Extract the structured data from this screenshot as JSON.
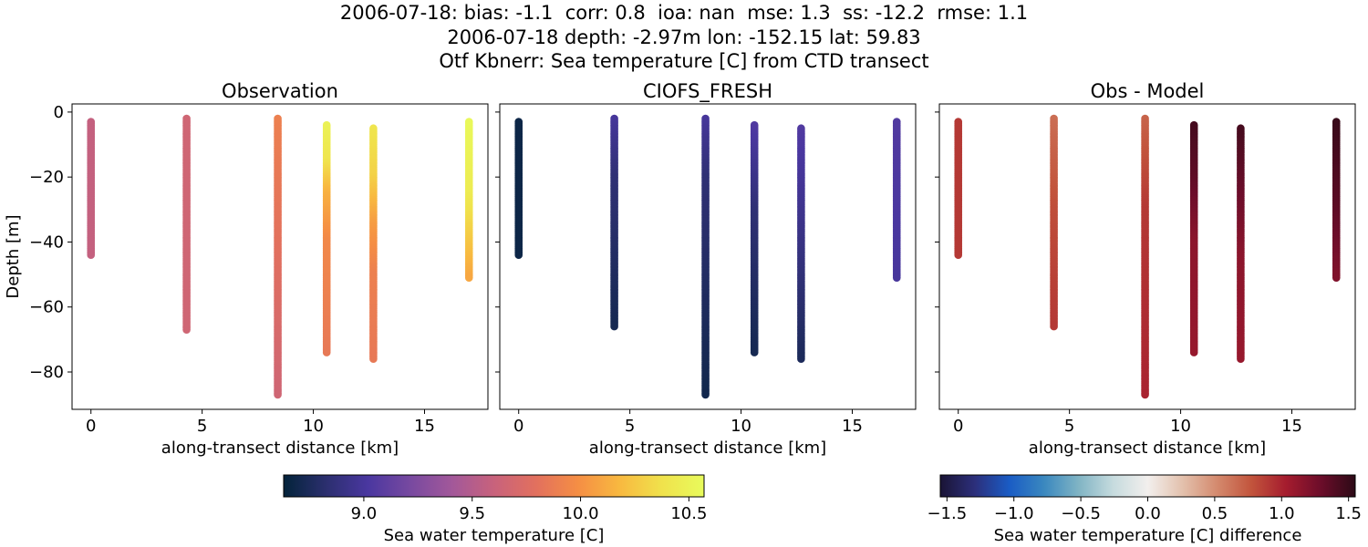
{
  "suptitle": {
    "line1": "2006-07-18: bias: -1.1  corr: 0.8  ioa: nan  mse: 1.3  ss: -12.2  rmse: 1.1",
    "line2": "2006-07-18 depth: -2.97m lon: -152.15 lat: 59.83",
    "line3": "Otf Kbnerr: Sea temperature [C] from CTD transect"
  },
  "chart_data": [
    {
      "type": "scatter",
      "title": "Observation",
      "xlabel": "along-transect distance [km]",
      "ylabel": "Depth [m]",
      "xlim": [
        -0.85,
        17.85
      ],
      "ylim": [
        -91.5,
        2.5
      ],
      "xticks": [
        "0",
        "5",
        "10",
        "15"
      ],
      "yticks": [
        "0",
        "−20",
        "−40",
        "−60",
        "−80"
      ],
      "colorbar": "temperature",
      "profiles": [
        {
          "x": 0.0,
          "top": -3,
          "bottom": -44,
          "values": [
            {
              "depth": -3,
              "value": 9.58
            },
            {
              "depth": -44,
              "value": 9.58
            }
          ]
        },
        {
          "x": 4.3,
          "top": -2,
          "bottom": -67,
          "values": [
            {
              "depth": -2,
              "value": 9.65
            },
            {
              "depth": -67,
              "value": 9.65
            }
          ]
        },
        {
          "x": 8.4,
          "top": -2,
          "bottom": -87,
          "values": [
            {
              "depth": -2,
              "value": 9.9
            },
            {
              "depth": -40,
              "value": 9.8
            },
            {
              "depth": -87,
              "value": 9.65
            }
          ]
        },
        {
          "x": 10.6,
          "top": -4,
          "bottom": -74,
          "values": [
            {
              "depth": -4,
              "value": 10.5
            },
            {
              "depth": -15,
              "value": 10.4
            },
            {
              "depth": -25,
              "value": 10.15
            },
            {
              "depth": -40,
              "value": 9.95
            },
            {
              "depth": -74,
              "value": 9.85
            }
          ]
        },
        {
          "x": 12.7,
          "top": -5,
          "bottom": -76,
          "values": [
            {
              "depth": -5,
              "value": 10.4
            },
            {
              "depth": -20,
              "value": 10.3
            },
            {
              "depth": -35,
              "value": 10.05
            },
            {
              "depth": -50,
              "value": 9.9
            },
            {
              "depth": -76,
              "value": 9.85
            }
          ]
        },
        {
          "x": 17.0,
          "top": -3,
          "bottom": -51,
          "values": [
            {
              "depth": -3,
              "value": 10.55
            },
            {
              "depth": -25,
              "value": 10.45
            },
            {
              "depth": -40,
              "value": 10.25
            },
            {
              "depth": -51,
              "value": 10.1
            }
          ]
        }
      ]
    },
    {
      "type": "scatter",
      "title": "CIOFS_FRESH",
      "xlabel": "along-transect distance [km]",
      "ylabel": "",
      "xlim": [
        -0.85,
        17.85
      ],
      "ylim": [
        -91.5,
        2.5
      ],
      "xticks": [
        "0",
        "5",
        "10",
        "15"
      ],
      "yticks": [],
      "colorbar": "temperature",
      "profiles": [
        {
          "x": 0.0,
          "top": -3,
          "bottom": -44,
          "values": [
            {
              "depth": -3,
              "value": 8.68
            },
            {
              "depth": -44,
              "value": 8.68
            }
          ]
        },
        {
          "x": 4.3,
          "top": -2,
          "bottom": -66,
          "values": [
            {
              "depth": -2,
              "value": 9.0
            },
            {
              "depth": -20,
              "value": 8.85
            },
            {
              "depth": -66,
              "value": 8.72
            }
          ]
        },
        {
          "x": 8.4,
          "top": -2,
          "bottom": -87,
          "values": [
            {
              "depth": -2,
              "value": 9.0
            },
            {
              "depth": -20,
              "value": 8.85
            },
            {
              "depth": -87,
              "value": 8.7
            }
          ]
        },
        {
          "x": 10.6,
          "top": -4,
          "bottom": -74,
          "values": [
            {
              "depth": -4,
              "value": 9.05
            },
            {
              "depth": -30,
              "value": 8.85
            },
            {
              "depth": -74,
              "value": 8.72
            }
          ]
        },
        {
          "x": 12.7,
          "top": -5,
          "bottom": -76,
          "values": [
            {
              "depth": -5,
              "value": 9.05
            },
            {
              "depth": -30,
              "value": 8.95
            },
            {
              "depth": -76,
              "value": 8.75
            }
          ]
        },
        {
          "x": 17.0,
          "top": -3,
          "bottom": -51,
          "values": [
            {
              "depth": -3,
              "value": 9.05
            },
            {
              "depth": -51,
              "value": 9.0
            }
          ]
        }
      ]
    },
    {
      "type": "scatter",
      "title": "Obs - Model",
      "xlabel": "along-transect distance [km]",
      "ylabel": "",
      "xlim": [
        -0.85,
        17.85
      ],
      "ylim": [
        -91.5,
        2.5
      ],
      "xticks": [
        "0",
        "5",
        "10",
        "15"
      ],
      "yticks": [],
      "colorbar": "difference",
      "profiles": [
        {
          "x": 0.0,
          "top": -3,
          "bottom": -44,
          "values": [
            {
              "depth": -3,
              "value": 0.9
            },
            {
              "depth": -44,
              "value": 0.9
            }
          ]
        },
        {
          "x": 4.3,
          "top": -2,
          "bottom": -66,
          "values": [
            {
              "depth": -2,
              "value": 0.65
            },
            {
              "depth": -30,
              "value": 0.8
            },
            {
              "depth": -66,
              "value": 0.9
            }
          ]
        },
        {
          "x": 8.4,
          "top": -2,
          "bottom": -87,
          "values": [
            {
              "depth": -2,
              "value": 0.7
            },
            {
              "depth": -30,
              "value": 0.9
            },
            {
              "depth": -87,
              "value": 1.0
            }
          ]
        },
        {
          "x": 10.6,
          "top": -4,
          "bottom": -74,
          "values": [
            {
              "depth": -4,
              "value": 1.45
            },
            {
              "depth": -20,
              "value": 1.35
            },
            {
              "depth": -40,
              "value": 1.15
            },
            {
              "depth": -74,
              "value": 1.1
            }
          ]
        },
        {
          "x": 12.7,
          "top": -5,
          "bottom": -76,
          "values": [
            {
              "depth": -5,
              "value": 1.45
            },
            {
              "depth": -25,
              "value": 1.3
            },
            {
              "depth": -45,
              "value": 1.15
            },
            {
              "depth": -76,
              "value": 1.1
            }
          ]
        },
        {
          "x": 17.0,
          "top": -3,
          "bottom": -51,
          "values": [
            {
              "depth": -3,
              "value": 1.5
            },
            {
              "depth": -30,
              "value": 1.35
            },
            {
              "depth": -51,
              "value": 1.2
            }
          ]
        }
      ]
    }
  ],
  "colorbars": {
    "temperature": {
      "label": "Sea water temperature [C]",
      "range": [
        8.63,
        10.57
      ],
      "ticks": [
        {
          "value": 9.0,
          "label": "9.0"
        },
        {
          "value": 9.5,
          "label": "9.5"
        },
        {
          "value": 10.0,
          "label": "10.0"
        },
        {
          "value": 10.5,
          "label": "10.5"
        }
      ],
      "stops": [
        "#03233a",
        "#2b2f6e",
        "#4a37a0",
        "#7749a0",
        "#a2589a",
        "#c8627c",
        "#e2705e",
        "#f58e44",
        "#f8b940",
        "#f0e24c",
        "#e8fb5c"
      ]
    },
    "difference": {
      "label": "Sea water temperature [C] difference",
      "range": [
        -1.55,
        1.55
      ],
      "ticks": [
        {
          "value": -1.5,
          "label": "−1.5"
        },
        {
          "value": -1.0,
          "label": "−1.0"
        },
        {
          "value": -0.5,
          "label": "−0.5"
        },
        {
          "value": 0.0,
          "label": "0.0"
        },
        {
          "value": 0.5,
          "label": "0.5"
        },
        {
          "value": 1.0,
          "label": "1.0"
        },
        {
          "value": 1.5,
          "label": "1.5"
        }
      ],
      "stops": [
        "#1a1435",
        "#2c2f7b",
        "#1a5cc5",
        "#3a88bf",
        "#80b4c4",
        "#c6dbde",
        "#f2efed",
        "#e3c1ad",
        "#d48a6e",
        "#c2543c",
        "#a51c2e",
        "#6c0d2a",
        "#2c0a16"
      ]
    }
  }
}
